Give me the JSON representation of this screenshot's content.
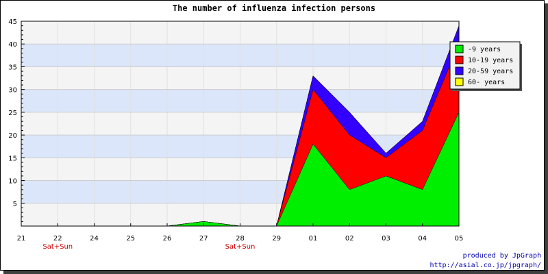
{
  "chart_data": {
    "type": "area",
    "stacked": true,
    "title": "The number of influenza infection persons",
    "categories": [
      "21",
      "22",
      "24",
      "25",
      "26",
      "27",
      "28",
      "29",
      "01",
      "02",
      "03",
      "04",
      "05"
    ],
    "annotations": [
      {
        "category": "22",
        "text": "Sat+Sun"
      },
      {
        "category": "28",
        "text": "Sat+Sun"
      }
    ],
    "ylim": [
      0,
      45
    ],
    "yticks": [
      5,
      10,
      15,
      20,
      25,
      30,
      35,
      40,
      45
    ],
    "grid": true,
    "legend_position": "top-right",
    "series": [
      {
        "name": "-9 years",
        "color": "#00ee00",
        "values": [
          0,
          0,
          0,
          0,
          0,
          1,
          0,
          0,
          18,
          8,
          11,
          8,
          25
        ]
      },
      {
        "name": "10-19 years",
        "color": "#ff0000",
        "values": [
          0,
          0,
          0,
          0,
          0,
          0,
          0,
          0,
          12,
          12,
          4,
          13,
          15
        ]
      },
      {
        "name": "20-59 years",
        "color": "#3300ff",
        "values": [
          0,
          0,
          0,
          0,
          0,
          0,
          0,
          0,
          3,
          5,
          1,
          2,
          4
        ]
      },
      {
        "name": "60- years",
        "color": "#ffff00",
        "values": [
          0,
          0,
          0,
          0,
          0,
          0,
          0,
          0,
          0,
          0,
          0,
          0,
          0
        ]
      }
    ]
  },
  "credits": {
    "line1": "produced by JpGraph",
    "line2": "http://asial.co.jp/jpgraph/"
  }
}
